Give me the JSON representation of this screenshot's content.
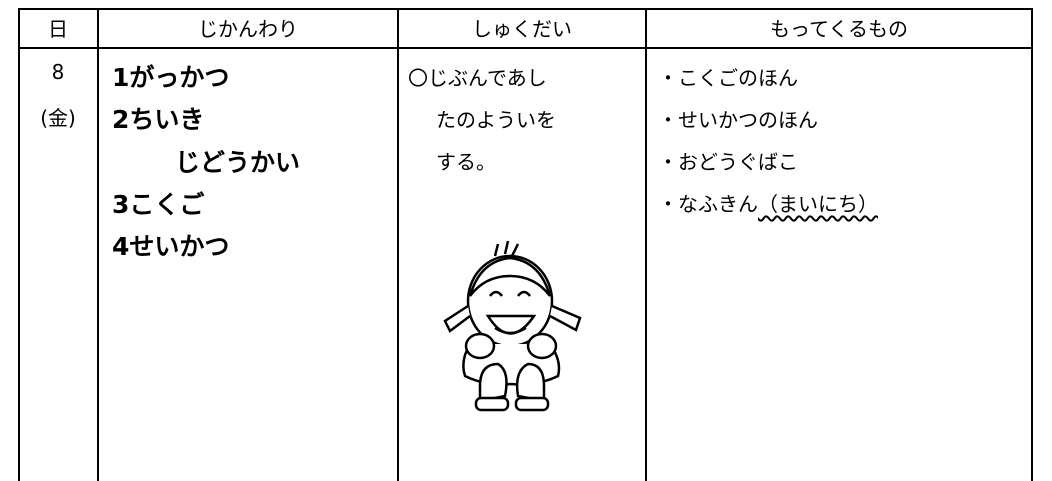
{
  "table": {
    "header": [
      "日",
      "じかんわり",
      "しゅくだい",
      "もってくるもの"
    ],
    "date": [
      "8",
      "(金)"
    ],
    "schedule": [
      "1がっかつ",
      "2ちいき",
      "じどうかい",
      "3こくご",
      "4せいかつ"
    ],
    "homework": [
      "〇じぶんであし",
      "たのよういを",
      "する。"
    ],
    "items": [
      "・こくごのほん",
      "・せいかつのほん",
      "・おどうぐばこ",
      "・なふきん"
    ],
    "item_note": "（まいにち）"
  }
}
